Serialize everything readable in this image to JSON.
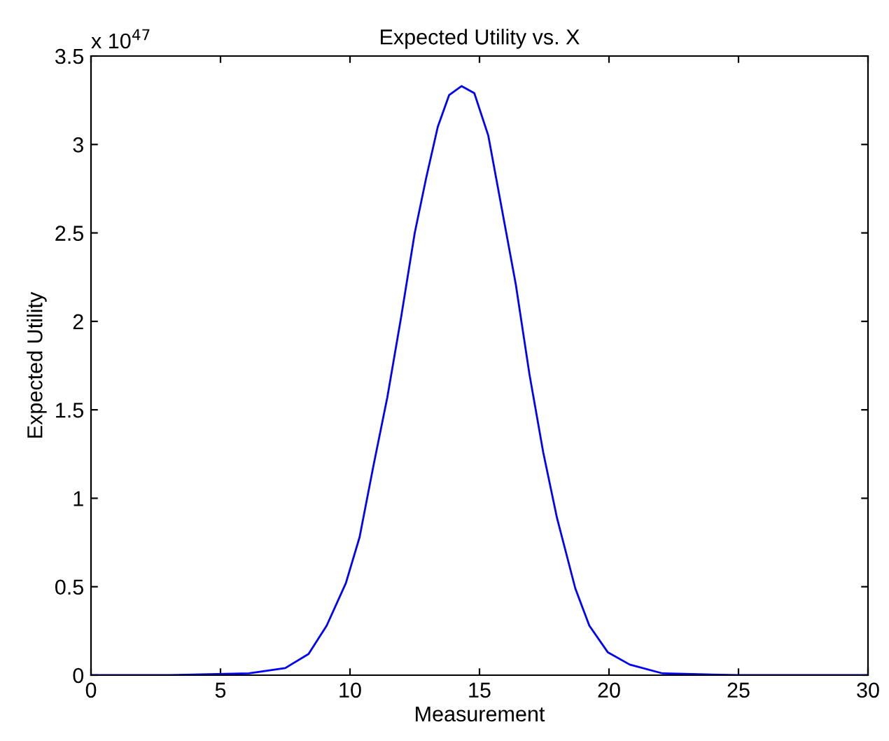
{
  "chart_data": {
    "type": "line",
    "title": "Expected Utility vs. X",
    "xlabel": "Measurement",
    "ylabel": "Expected Utility",
    "annotations": [
      "x 10$^{47}$"
    ],
    "series": [
      {
        "color": "#0000ff",
        "x": [
          0,
          3,
          6.1,
          7.5,
          8.4,
          9.1,
          9.84,
          10.37,
          10.9,
          11.44,
          11.97,
          12.5,
          12.94,
          13.39,
          13.83,
          14.31,
          14.8,
          15.34,
          15.87,
          16.4,
          16.93,
          17.46,
          17.99,
          18.7,
          19.24,
          19.95,
          20.8,
          22.07,
          25,
          30
        ],
        "values": [
          0,
          0,
          0.01,
          0.04,
          0.12,
          0.28,
          0.52,
          0.78,
          1.18,
          1.57,
          2.02,
          2.5,
          2.81,
          3.1,
          3.28,
          3.33,
          3.29,
          3.05,
          2.63,
          2.21,
          1.7,
          1.26,
          0.89,
          0.49,
          0.28,
          0.13,
          0.06,
          0.01,
          0,
          0
        ]
      }
    ],
    "xlim": [
      0,
      30
    ],
    "xticks": [
      0,
      5,
      10,
      15,
      20,
      25,
      30
    ],
    "ylim": [
      0,
      3.5
    ],
    "yticks": [
      0,
      0.5,
      1,
      1.5,
      2,
      2.5,
      3,
      3.5
    ],
    "grid": false,
    "legend": false
  }
}
